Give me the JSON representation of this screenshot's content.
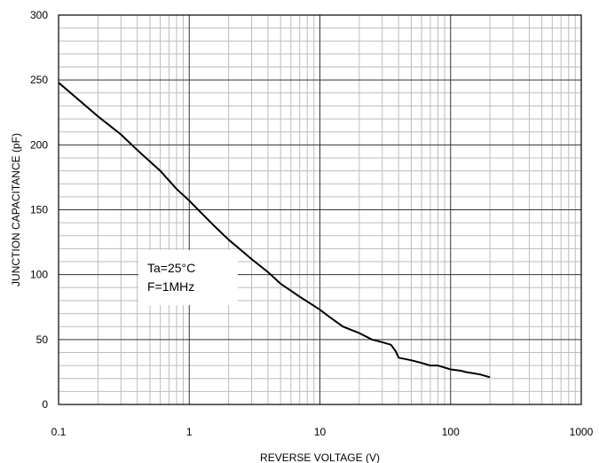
{
  "chart_data": {
    "type": "line",
    "title": "",
    "xlabel": "REVERSE VOLTAGE (V)",
    "ylabel": "JUNCTION CAPACITANCE (pF)",
    "xscale": "log",
    "xlim": [
      0.1,
      1000
    ],
    "ylim": [
      0,
      300
    ],
    "grid": true,
    "x_ticks": [
      "0.1",
      "1",
      "10",
      "100",
      "1000"
    ],
    "y_ticks": [
      "0",
      "50",
      "100",
      "150",
      "200",
      "250",
      "300"
    ],
    "annotation": {
      "line1": "Ta=25°C",
      "line2": "F=1MHz"
    },
    "series": [
      {
        "x": [
          0.1,
          0.2,
          0.3,
          0.4,
          0.6,
          0.8,
          1,
          1.5,
          2,
          3,
          4,
          5,
          7,
          9,
          10,
          12,
          15,
          20,
          25,
          30,
          35,
          38,
          40,
          45,
          50,
          60,
          70,
          80,
          100,
          120,
          130,
          150,
          170,
          200
        ],
        "y": [
          248,
          222,
          208,
          196,
          180,
          166,
          157,
          139,
          127,
          112,
          102,
          93,
          83,
          76,
          73,
          67,
          60,
          55,
          50,
          48,
          46,
          41,
          36,
          35,
          34,
          32,
          30,
          30,
          27,
          26,
          25,
          24,
          23,
          21
        ]
      }
    ]
  }
}
